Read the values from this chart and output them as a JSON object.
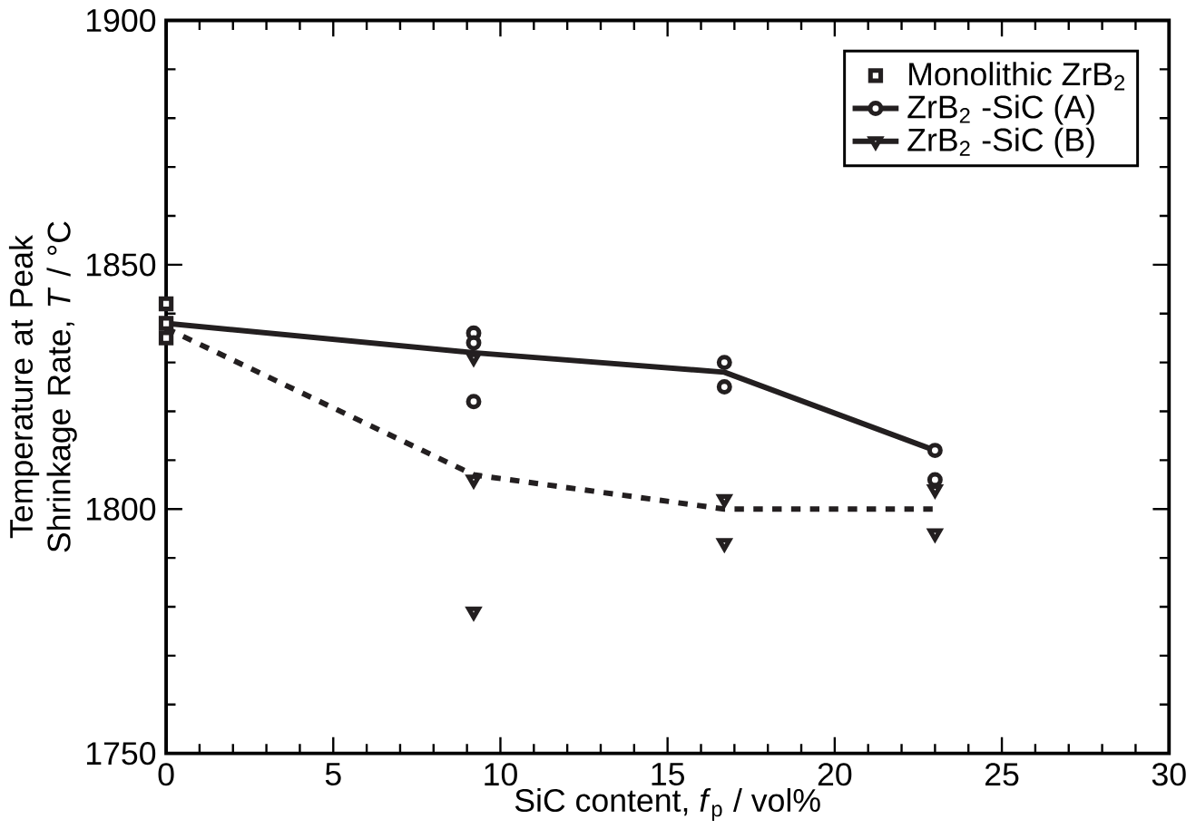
{
  "chart_data": {
    "type": "scatter",
    "xlabel": "SiC content, *f*$_{p}$  / vol%",
    "ylabel": "Temperature at Peak Shrinkage Rate, *T* / °C",
    "xlim": [
      0,
      30
    ],
    "xticks": [
      0,
      5,
      10,
      15,
      20,
      25,
      30
    ],
    "ylim": [
      1750,
      1900
    ],
    "yticks": [
      1750,
      1800,
      1850,
      1900
    ],
    "grid": false,
    "legend": "top right",
    "series": [
      {
        "name": "Monolithic ZrB$_{2}$",
        "marker": "square",
        "color": "#231f20",
        "x": [
          0,
          0,
          0
        ],
        "values": [
          1842,
          1838,
          1835
        ]
      },
      {
        "name": "ZrB$_{2}$ -SiC (A)",
        "marker": "circle",
        "color": "#231f20",
        "x": [
          9.2,
          9.2,
          9.2,
          16.7,
          16.7,
          23,
          23
        ],
        "values": [
          1836,
          1834,
          1822,
          1830,
          1825,
          1812,
          1806
        ]
      },
      {
        "type": "line",
        "line_style": "solid",
        "marker": "none",
        "color": "#231f20",
        "x": [
          0,
          9.2,
          16.7,
          23
        ],
        "values": [
          1838,
          1832,
          1828,
          1812
        ]
      },
      {
        "name": "ZrB$_{2}$ -SiC (B)",
        "marker": "triangle",
        "color": "#231f20",
        "x": [
          9.2,
          9.2,
          9.2,
          16.7,
          16.7,
          23,
          23
        ],
        "values": [
          1831,
          1806,
          1779,
          1802,
          1793,
          1804,
          1795
        ]
      },
      {
        "type": "line",
        "line_style": "dotted",
        "marker": "none",
        "color": "#231f20",
        "x": [
          0,
          9.2,
          16.7,
          23
        ],
        "values": [
          1837,
          1807,
          1800,
          1800
        ]
      }
    ]
  }
}
